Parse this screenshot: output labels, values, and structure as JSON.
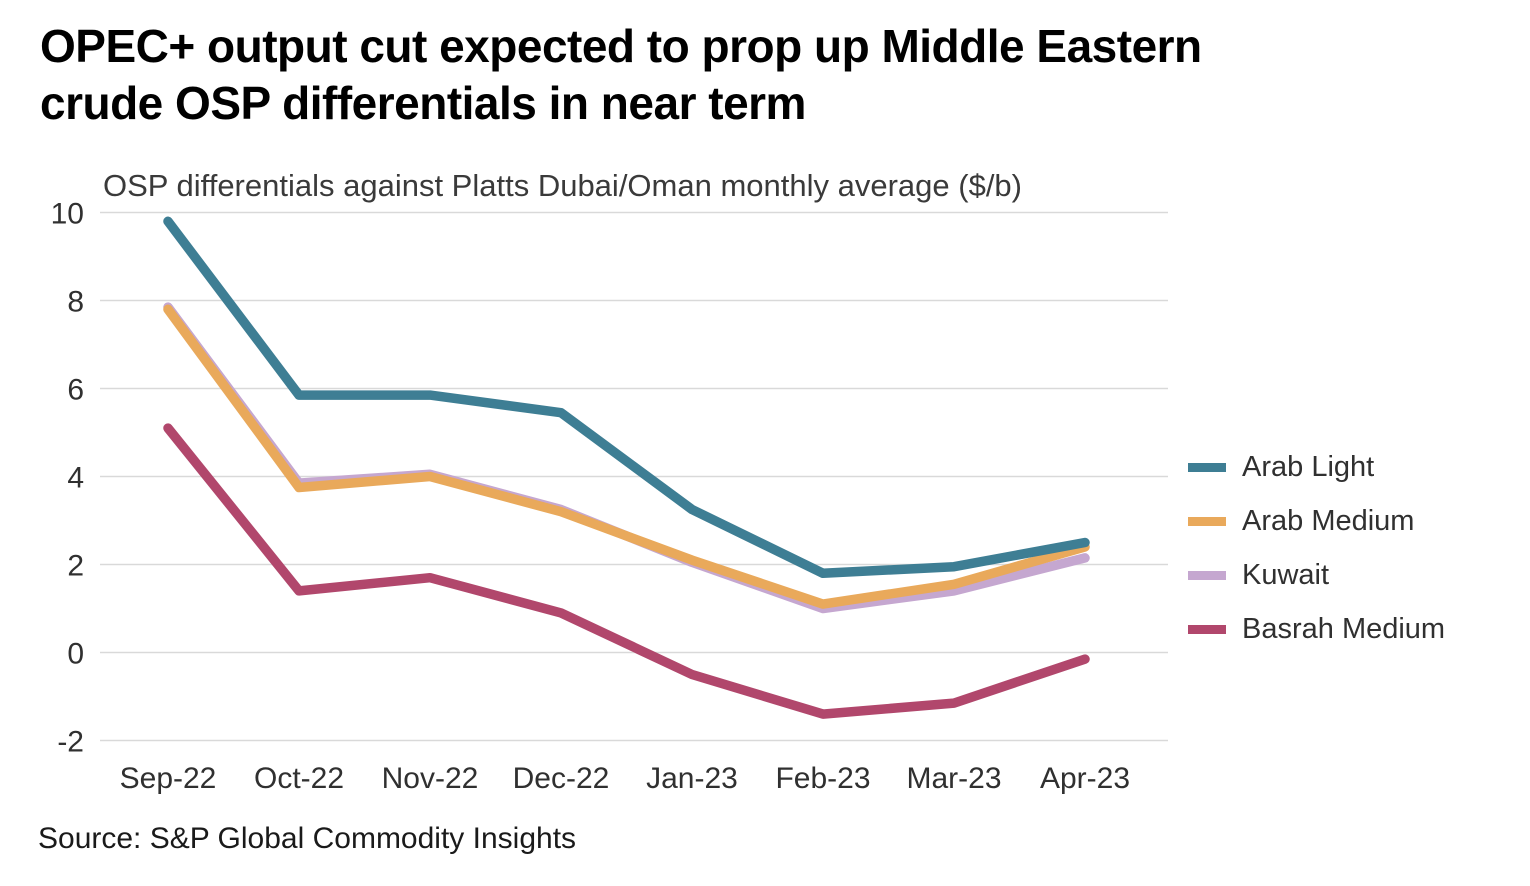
{
  "header": {
    "title_line1": "OPEC+ output cut expected to prop up Middle Eastern",
    "title_line2": "crude OSP differentials in near term"
  },
  "chart_data": {
    "type": "line",
    "subtitle": "OSP differentials against Platts Dubai/Oman monthly average ($/b)",
    "categories": [
      "Sep-22",
      "Oct-22",
      "Nov-22",
      "Dec-22",
      "Jan-23",
      "Feb-23",
      "Mar-23",
      "Apr-23"
    ],
    "series": [
      {
        "name": "Arab Light",
        "color": "#3E7E94",
        "values": [
          9.8,
          5.85,
          5.85,
          5.45,
          3.25,
          1.8,
          1.95,
          2.5
        ]
      },
      {
        "name": "Arab Medium",
        "color": "#E9A95B",
        "values": [
          7.8,
          3.75,
          4.0,
          3.2,
          2.1,
          1.1,
          1.55,
          2.4
        ]
      },
      {
        "name": "Kuwait",
        "color": "#C5A7D0",
        "values": [
          7.85,
          3.85,
          4.05,
          3.25,
          2.05,
          1.0,
          1.4,
          2.15
        ]
      },
      {
        "name": "Basrah Medium",
        "color": "#B1476C",
        "values": [
          5.1,
          1.4,
          1.7,
          0.9,
          -0.5,
          -1.4,
          -1.15,
          -0.15
        ]
      }
    ],
    "ylim": [
      -2,
      10
    ],
    "yticks": [
      10,
      8,
      6,
      4,
      2,
      0,
      -2
    ],
    "grid": "horizontal",
    "legend_position": "right",
    "ylabel": "",
    "xlabel": ""
  },
  "footer": {
    "source": "Source: S&P Global Commodity Insights"
  }
}
